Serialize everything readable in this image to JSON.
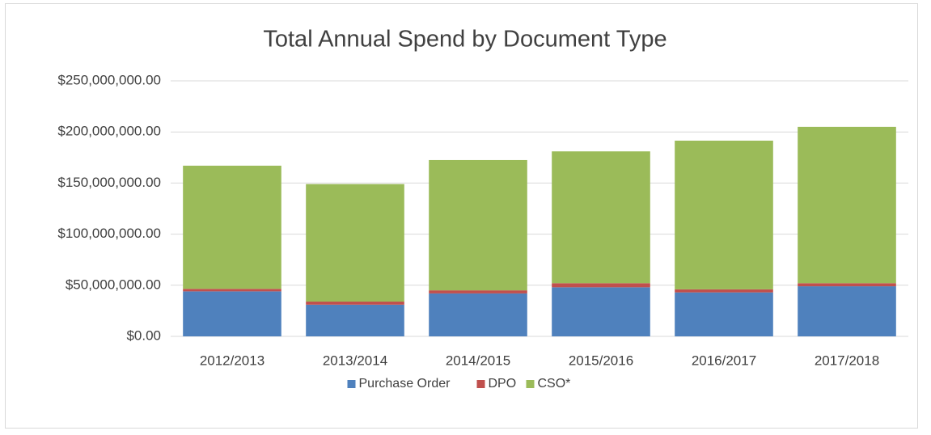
{
  "chart_data": {
    "type": "stacked_bar",
    "title": "Total Annual Spend by Document Type",
    "categories": [
      "2012/2013",
      "2013/2014",
      "2014/2015",
      "2015/2016",
      "2016/2017",
      "2017/2018"
    ],
    "series": [
      {
        "name": "Purchase Order",
        "color": "#4f81bd",
        "values": [
          44000000,
          31000000,
          42000000,
          48000000,
          43000000,
          49000000
        ]
      },
      {
        "name": "DPO",
        "color": "#c0504d",
        "values": [
          2500000,
          3000000,
          3000000,
          4000000,
          3000000,
          3000000
        ]
      },
      {
        "name": "CSO*",
        "color": "#9bbb59",
        "values": [
          120500000,
          115000000,
          127500000,
          129000000,
          145500000,
          153000000
        ]
      }
    ],
    "ylim": [
      0,
      250000000
    ],
    "yticks": [
      {
        "value": 0,
        "label": "$0.00"
      },
      {
        "value": 50000000,
        "label": "$50,000,000.00"
      },
      {
        "value": 100000000,
        "label": "$100,000,000.00"
      },
      {
        "value": 150000000,
        "label": "$150,000,000.00"
      },
      {
        "value": 200000000,
        "label": "$200,000,000.00"
      },
      {
        "value": 250000000,
        "label": "$250,000,000.00"
      }
    ],
    "grid": true,
    "legend": "bottom"
  }
}
